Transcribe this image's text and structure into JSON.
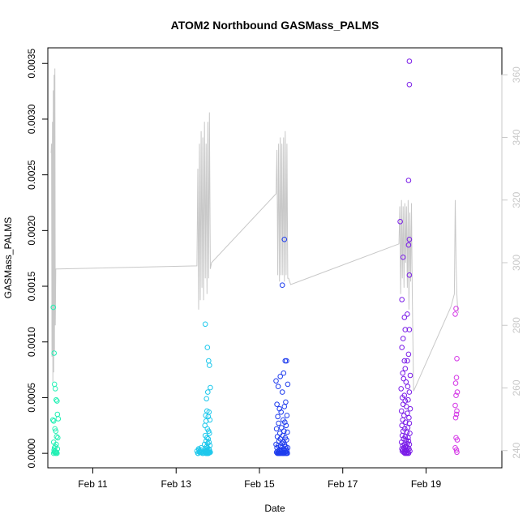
{
  "chart_data": {
    "type": "scatter",
    "title": "ATOM2 Northbound GASMass_PALMS",
    "xlabel": "Date",
    "ylabel": "GASMass_PALMS",
    "x_ticks": [
      "Feb 11",
      "Feb 13",
      "Feb 15",
      "Feb 17",
      "Feb 19"
    ],
    "x_tick_values": [
      11,
      13,
      15,
      17,
      19
    ],
    "xlim": [
      9.92,
      20.82
    ],
    "ylim": [
      -0.00013,
      0.00364
    ],
    "y_ticks": [
      "0.0000",
      "0.0005",
      "0.0010",
      "0.0015",
      "0.0020",
      "0.0025",
      "0.0030",
      "0.0035"
    ],
    "y_tick_values": [
      0.0,
      0.0005,
      0.001,
      0.0015,
      0.002,
      0.0025,
      0.003,
      0.0035
    ],
    "y2_ticks": [
      "240",
      "260",
      "280",
      "300",
      "320",
      "340",
      "360"
    ],
    "y2_tick_values": [
      240,
      260,
      280,
      300,
      320,
      340,
      360
    ],
    "y2lim": [
      234.5,
      368.6
    ],
    "grid": false,
    "colors": {
      "flight1": "#22f0b4",
      "flight2": "#1ec8ec",
      "flight3": "#1e3cee",
      "flight4": "#7a1ce8",
      "flight5": "#d436e6",
      "altitude_line": "#c8c8c8"
    },
    "series": [
      {
        "color": "flight1",
        "x": [
          10.05,
          10.07,
          10.08,
          10.1,
          10.12,
          10.14,
          10.15,
          10.17,
          10.04,
          10.06,
          10.09,
          10.11,
          10.13,
          10.16,
          10.06,
          10.12,
          10.1,
          10.08,
          10.15,
          10.07,
          10.09,
          10.13,
          10.1,
          10.11,
          10.06,
          10.14,
          10.08
        ],
        "y": [
          0.00131,
          0.0009,
          0.00062,
          0.00058,
          0.00048,
          0.00047,
          0.00035,
          0.00031,
          0.0003,
          0.00029,
          0.00022,
          0.0002,
          0.00015,
          0.00014,
          0.0001,
          8e-05,
          6e-05,
          5e-05,
          4e-05,
          3e-05,
          2e-05,
          1e-05,
          1e-05,
          0.0,
          0.0,
          0.0,
          1e-05
        ]
      },
      {
        "color": "flight2",
        "x": [
          13.7,
          13.75,
          13.78,
          13.8,
          13.82,
          13.76,
          13.73,
          13.74,
          13.79,
          13.71,
          13.77,
          13.81,
          13.72,
          13.69,
          13.75,
          13.78,
          13.8,
          13.7,
          13.74,
          13.77,
          13.72,
          13.79,
          13.76,
          13.68,
          13.81,
          13.73,
          13.75,
          13.71,
          13.78,
          13.74,
          13.8,
          13.76,
          13.69,
          13.72,
          13.77,
          13.79,
          13.7,
          13.82,
          13.73,
          13.75,
          13.78,
          13.71,
          13.8,
          13.74,
          13.76,
          13.6,
          13.55,
          13.5,
          13.62,
          13.58,
          13.52,
          13.65,
          13.57,
          13.54,
          13.6,
          13.63,
          13.56,
          13.59,
          13.53
        ],
        "y": [
          0.00116,
          0.00095,
          0.00083,
          0.00079,
          0.00059,
          0.00055,
          0.00049,
          0.00038,
          0.00037,
          0.00034,
          0.00033,
          0.0003,
          0.00029,
          0.00025,
          0.00022,
          0.0002,
          0.00018,
          0.00016,
          0.00014,
          0.00013,
          0.00011,
          0.0001,
          9e-05,
          8e-05,
          7e-05,
          6e-05,
          5e-05,
          4e-05,
          4e-05,
          3e-05,
          3e-05,
          2e-05,
          2e-05,
          2e-05,
          1e-05,
          1e-05,
          1e-05,
          1e-05,
          0.0,
          0.0,
          0.0,
          0.0,
          1e-05,
          2e-05,
          0.0,
          5e-05,
          3e-05,
          2e-05,
          1e-05,
          1e-05,
          0.0,
          0.0,
          2e-05,
          4e-05,
          1e-05,
          0.0,
          1e-05,
          3e-05,
          0.0
        ]
      },
      {
        "color": "flight3",
        "x": [
          15.6,
          15.55,
          15.65,
          15.62,
          15.58,
          15.4,
          15.5,
          15.68,
          15.45,
          15.55,
          15.63,
          15.42,
          15.6,
          15.48,
          15.52,
          15.66,
          15.44,
          15.57,
          15.61,
          15.46,
          15.64,
          15.53,
          15.41,
          15.59,
          15.67,
          15.49,
          15.56,
          15.43,
          15.62,
          15.5,
          15.65,
          15.47,
          15.58,
          15.54,
          15.4,
          15.6,
          15.45,
          15.63,
          15.51,
          15.68,
          15.42,
          15.57,
          15.64,
          15.48,
          15.53,
          15.61,
          15.44,
          15.66,
          15.5,
          15.55,
          15.59,
          15.46,
          15.62,
          15.52,
          15.41,
          15.58,
          15.65,
          15.47,
          15.56,
          15.43,
          15.6,
          15.49,
          15.67,
          15.54,
          15.45,
          15.63,
          15.51
        ],
        "y": [
          0.00192,
          0.00151,
          0.00083,
          0.00083,
          0.00072,
          0.00065,
          0.00069,
          0.00062,
          0.0006,
          0.00055,
          0.00046,
          0.00044,
          0.00042,
          0.0004,
          0.00037,
          0.00034,
          0.00033,
          0.0003,
          0.00028,
          0.00027,
          0.00025,
          0.00023,
          0.00022,
          0.0002,
          0.00019,
          0.00018,
          0.00016,
          0.00015,
          0.00014,
          0.00013,
          0.00012,
          0.00011,
          0.0001,
          9e-05,
          8e-05,
          8e-05,
          7e-05,
          6e-05,
          6e-05,
          5e-05,
          5e-05,
          4e-05,
          4e-05,
          3e-05,
          3e-05,
          3e-05,
          2e-05,
          2e-05,
          2e-05,
          2e-05,
          1e-05,
          1e-05,
          1e-05,
          1e-05,
          1e-05,
          0.0,
          0.0,
          0.0,
          0.0,
          0.0,
          0.0,
          0.0,
          0.0,
          0.0,
          0.0,
          0.0,
          0.0
        ]
      },
      {
        "color": "flight4",
        "x": [
          18.6,
          18.6,
          18.58,
          18.6,
          18.38,
          18.58,
          18.45,
          18.6,
          18.42,
          18.55,
          18.48,
          18.6,
          18.5,
          18.45,
          18.42,
          18.58,
          18.55,
          18.48,
          18.5,
          18.44,
          18.62,
          18.46,
          18.52,
          18.56,
          18.4,
          18.6,
          18.48,
          18.43,
          18.57,
          18.5,
          18.45,
          18.53,
          18.62,
          18.41,
          18.55,
          18.47,
          18.59,
          18.44,
          18.51,
          18.6,
          18.42,
          18.56,
          18.49,
          18.45,
          18.54,
          18.61,
          18.43,
          18.5,
          18.57,
          18.46,
          18.52,
          18.58,
          18.41,
          18.55,
          18.48,
          18.6,
          18.44,
          18.53,
          18.5,
          18.47,
          18.56,
          18.42,
          18.59,
          18.45,
          18.51,
          18.54,
          18.48,
          18.61,
          18.43,
          18.57,
          18.5,
          18.46,
          18.52,
          18.55,
          18.49,
          18.58
        ],
        "y": [
          0.00352,
          0.00331,
          0.00245,
          0.00192,
          0.00208,
          0.00187,
          0.00176,
          0.0016,
          0.00138,
          0.00125,
          0.00122,
          0.00111,
          0.00111,
          0.00103,
          0.00095,
          0.00089,
          0.00083,
          0.00083,
          0.00076,
          0.00072,
          0.0007,
          0.00067,
          0.00064,
          0.0006,
          0.00058,
          0.00055,
          0.00052,
          0.0005,
          0.00048,
          0.00047,
          0.00044,
          0.00042,
          0.0004,
          0.00038,
          0.00036,
          0.00034,
          0.00032,
          0.0003,
          0.00028,
          0.00027,
          0.00025,
          0.00023,
          0.00022,
          0.0002,
          0.00019,
          0.00018,
          0.00016,
          0.00015,
          0.00014,
          0.00013,
          0.00012,
          0.00011,
          0.0001,
          9e-05,
          8e-05,
          8e-05,
          7e-05,
          6e-05,
          6e-05,
          5e-05,
          5e-05,
          4e-05,
          4e-05,
          3e-05,
          3e-05,
          3e-05,
          2e-05,
          2e-05,
          2e-05,
          1e-05,
          1e-05,
          1e-05,
          0.0,
          0.0,
          0.0,
          0.0
        ]
      },
      {
        "color": "flight5",
        "x": [
          19.72,
          19.7,
          19.74,
          19.73,
          19.71,
          19.75,
          19.72,
          19.7,
          19.74,
          19.73,
          19.71,
          19.72,
          19.75,
          19.7,
          19.73,
          19.74
        ],
        "y": [
          0.0013,
          0.00125,
          0.00085,
          0.00068,
          0.00063,
          0.00055,
          0.00052,
          0.00043,
          0.00038,
          0.00035,
          0.00032,
          0.00014,
          0.00012,
          5e-05,
          3e-05,
          1e-05
        ]
      }
    ],
    "altitude_line": {
      "x": [
        10.0,
        10.01,
        10.02,
        10.03,
        10.04,
        10.05,
        10.06,
        10.07,
        10.08,
        10.09,
        10.1,
        10.11,
        10.12,
        10.13,
        10.14,
        10.15,
        10.16,
        13.5,
        13.52,
        13.54,
        13.56,
        13.58,
        13.6,
        13.62,
        13.64,
        13.66,
        13.68,
        13.7,
        13.72,
        13.74,
        13.76,
        13.78,
        13.8,
        13.82,
        13.85,
        15.4,
        15.42,
        15.44,
        15.46,
        15.48,
        15.5,
        15.52,
        15.54,
        15.56,
        15.58,
        15.6,
        15.62,
        15.64,
        15.66,
        15.68,
        15.7,
        15.75,
        18.35,
        18.37,
        18.39,
        18.41,
        18.43,
        18.45,
        18.47,
        18.49,
        18.51,
        18.53,
        18.55,
        18.57,
        18.59,
        18.61,
        18.63,
        18.65,
        18.67,
        18.7,
        19.6,
        19.68,
        19.7,
        19.72,
        19.74,
        19.76,
        19.78
      ],
      "y": [
        335,
        338,
        270,
        345,
        262,
        355,
        265,
        360,
        272,
        362,
        280,
        298,
        298,
        298,
        298,
        298,
        298,
        299,
        330,
        285,
        338,
        288,
        342,
        292,
        340,
        288,
        345,
        295,
        338,
        290,
        345,
        295,
        348,
        298,
        300,
        322,
        336,
        296,
        338,
        294,
        340,
        296,
        338,
        296,
        340,
        294,
        342,
        296,
        338,
        295,
        295,
        293,
        306,
        318,
        290,
        320,
        295,
        318,
        292,
        319,
        300,
        318,
        292,
        320,
        285,
        316,
        294,
        319,
        290,
        259,
        286,
        290,
        320,
        300,
        290,
        285,
        284
      ]
    }
  }
}
